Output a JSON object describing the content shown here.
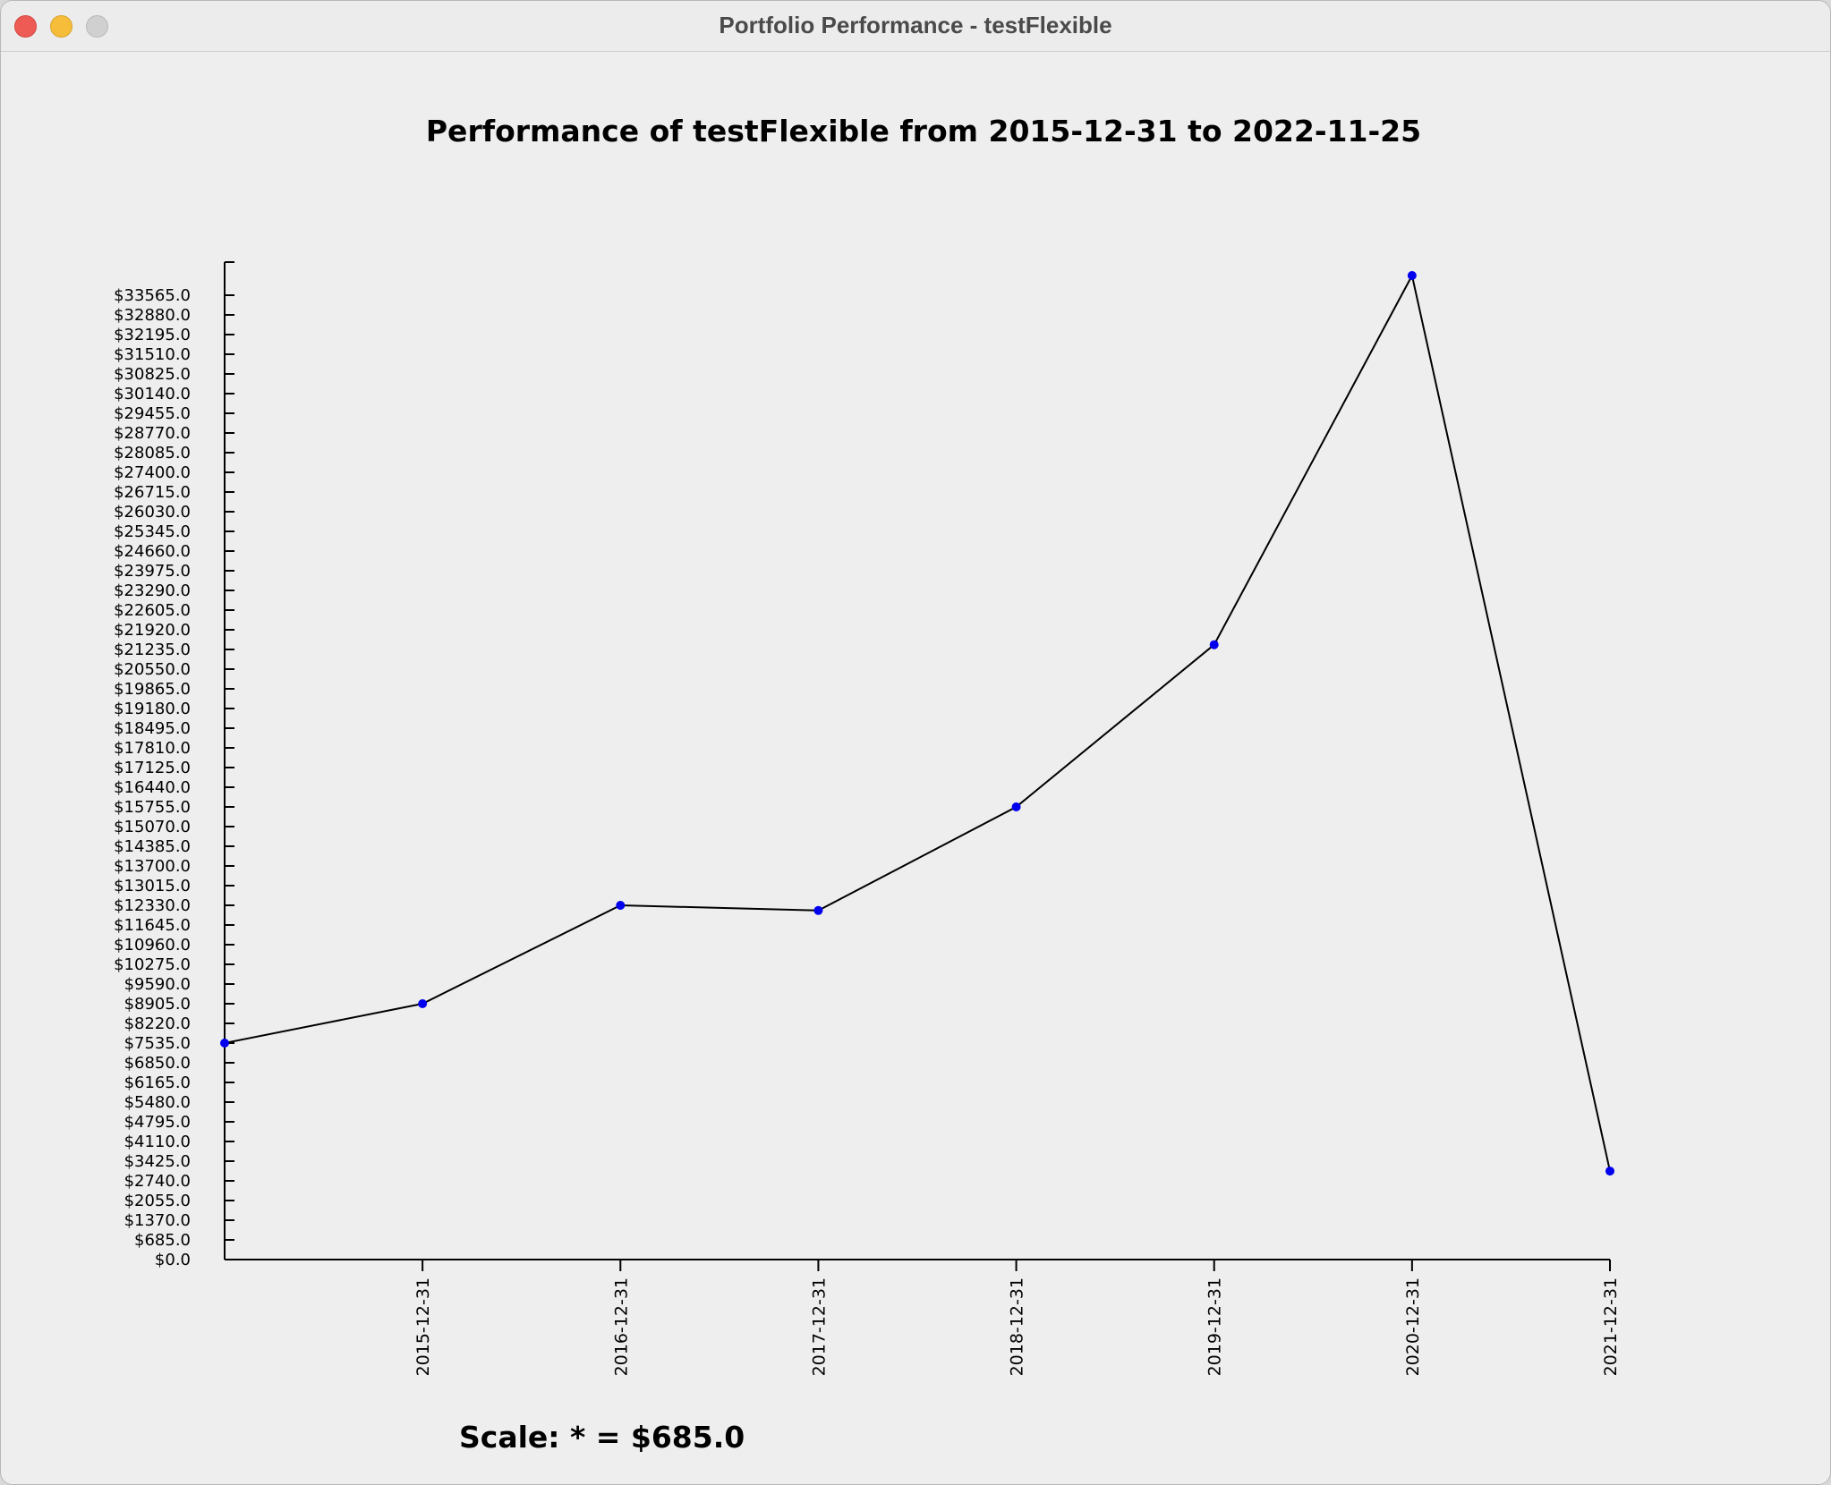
{
  "window": {
    "title": "Portfolio Performance - testFlexible"
  },
  "scale_text": "Scale: * = $685.0",
  "colors": {
    "line": "#000000",
    "point": "#0000ee",
    "axis": "#000000"
  },
  "chart_data": {
    "type": "line",
    "title": "Performance of testFlexible from 2015-12-31  to 2022-11-25",
    "xlabel": "",
    "ylabel": "",
    "ylim": [
      0,
      34250
    ],
    "y_tick_step": 685,
    "y_tick_prefix": "$",
    "y_tick_decimals": 1,
    "categories": [
      "",
      "2015-12-31",
      "2016-12-31",
      "2017-12-31",
      "2018-12-31",
      "2019-12-31",
      "2020-12-31",
      "2021-12-31"
    ],
    "values": [
      7535,
      8905,
      12330,
      12150,
      15755,
      21400,
      34250,
      3080
    ],
    "grid": false,
    "legend": "none"
  }
}
